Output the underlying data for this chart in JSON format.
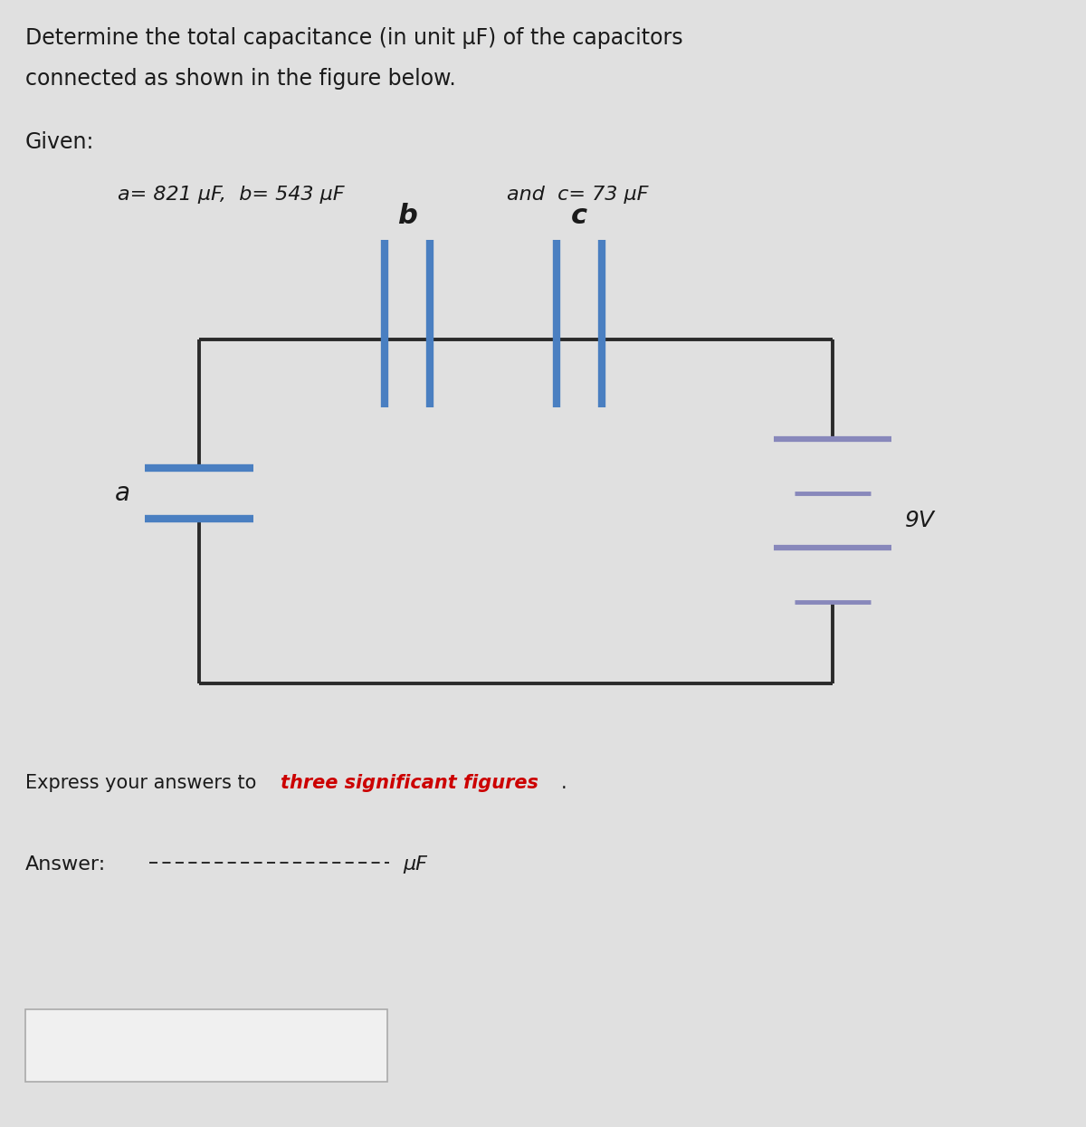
{
  "bg_color": "#e0e0e0",
  "title_line1": "Determine the total capacitance (in unit μF) of the capacitors",
  "title_line2": "connected as shown in the figure below.",
  "given_label": "Given:",
  "given_part1": "a= 821 μF,  b= 543 μF",
  "given_part2": "and  c= 73 μF",
  "express_normal": "Express your answers to ",
  "express_bold": "three significant figures",
  "express_end": ".",
  "answer_label": "Answer:",
  "answer_unit": "μF",
  "voltage_label": "9V",
  "cap_a_label": "a",
  "cap_b_label": "b",
  "cap_c_label": "c",
  "wire_color": "#2a2a2a",
  "cap_blue": "#4a7fc1",
  "batt_color": "#8888bb",
  "text_color": "#1a1a1a",
  "red_color": "#cc0000",
  "wire_lw": 2.8,
  "cap_lw": 6.0,
  "batt_lw_long": 4.5,
  "batt_lw_short": 3.5
}
